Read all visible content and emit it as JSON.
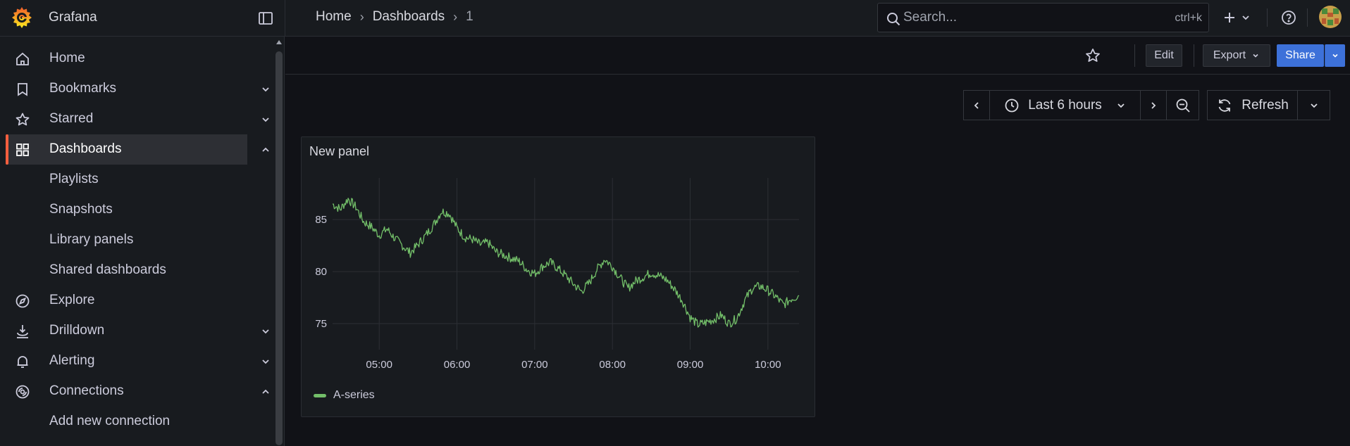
{
  "app": {
    "name": "Grafana"
  },
  "breadcrumb": [
    {
      "label": "Home"
    },
    {
      "label": "Dashboards"
    },
    {
      "label": "1"
    }
  ],
  "search": {
    "placeholder": "Search...",
    "shortcut": "ctrl+k"
  },
  "sidebar": {
    "items": [
      {
        "label": "Home",
        "icon": "home-icon"
      },
      {
        "label": "Bookmarks",
        "icon": "bookmark-icon",
        "chevron": "down"
      },
      {
        "label": "Starred",
        "icon": "star-icon",
        "chevron": "down"
      },
      {
        "label": "Dashboards",
        "icon": "dashboards-icon",
        "chevron": "up",
        "active": true
      },
      {
        "label": "Playlists"
      },
      {
        "label": "Snapshots"
      },
      {
        "label": "Library panels"
      },
      {
        "label": "Shared dashboards"
      },
      {
        "label": "Explore",
        "icon": "compass-icon"
      },
      {
        "label": "Drilldown",
        "icon": "drilldown-icon",
        "chevron": "down"
      },
      {
        "label": "Alerting",
        "icon": "bell-icon",
        "chevron": "down"
      },
      {
        "label": "Connections",
        "icon": "connections-icon",
        "chevron": "up"
      },
      {
        "label": "Add new connection"
      }
    ]
  },
  "toolbar": {
    "edit_label": "Edit",
    "export_label": "Export",
    "share_label": "Share"
  },
  "time_picker": {
    "range_label": "Last 6 hours",
    "refresh_label": "Refresh"
  },
  "panel": {
    "title": "New panel"
  },
  "colors": {
    "accent": "#f55f3e",
    "series": "#73bf69",
    "primary": "#3d71d9",
    "background": "#111217",
    "surface": "#181b1f"
  },
  "chart_data": {
    "type": "line",
    "title": "New panel",
    "xlabel": "",
    "ylabel": "",
    "x_ticks": [
      "05:00",
      "06:00",
      "07:00",
      "08:00",
      "09:00",
      "10:00"
    ],
    "y_ticks": [
      75,
      80,
      85
    ],
    "ylim": [
      72.5,
      89
    ],
    "x_range_hours": [
      4.4,
      10.4
    ],
    "legend": [
      "A-series"
    ],
    "series": [
      {
        "name": "A-series",
        "x_hours": [
          4.4,
          4.5,
          4.6,
          4.7,
          4.8,
          4.9,
          5.0,
          5.1,
          5.2,
          5.3,
          5.4,
          5.5,
          5.6,
          5.7,
          5.8,
          5.9,
          6.0,
          6.1,
          6.2,
          6.3,
          6.4,
          6.5,
          6.6,
          6.7,
          6.8,
          6.9,
          7.0,
          7.1,
          7.2,
          7.3,
          7.4,
          7.5,
          7.6,
          7.7,
          7.8,
          7.9,
          8.0,
          8.1,
          8.2,
          8.3,
          8.4,
          8.5,
          8.6,
          8.7,
          8.8,
          8.9,
          9.0,
          9.1,
          9.2,
          9.3,
          9.4,
          9.5,
          9.6,
          9.7,
          9.8,
          9.9,
          10.0,
          10.1,
          10.2,
          10.3,
          10.4
        ],
        "values": [
          86.5,
          86.0,
          87.0,
          86.2,
          84.8,
          84.3,
          83.5,
          84.1,
          83.2,
          82.5,
          81.8,
          82.6,
          83.5,
          84.5,
          85.8,
          85.6,
          84.2,
          83.3,
          83.1,
          82.6,
          82.8,
          81.9,
          81.6,
          81.3,
          81.0,
          80.2,
          79.8,
          80.5,
          80.9,
          80.3,
          79.6,
          78.8,
          78.1,
          78.9,
          80.2,
          81.2,
          80.5,
          79.4,
          78.4,
          79.1,
          79.5,
          79.9,
          79.6,
          79.2,
          78.3,
          77.2,
          75.6,
          74.9,
          75.1,
          75.4,
          75.8,
          75.0,
          75.5,
          77.2,
          78.4,
          78.6,
          78.2,
          77.6,
          76.8,
          77.4,
          77.7
        ]
      }
    ]
  }
}
